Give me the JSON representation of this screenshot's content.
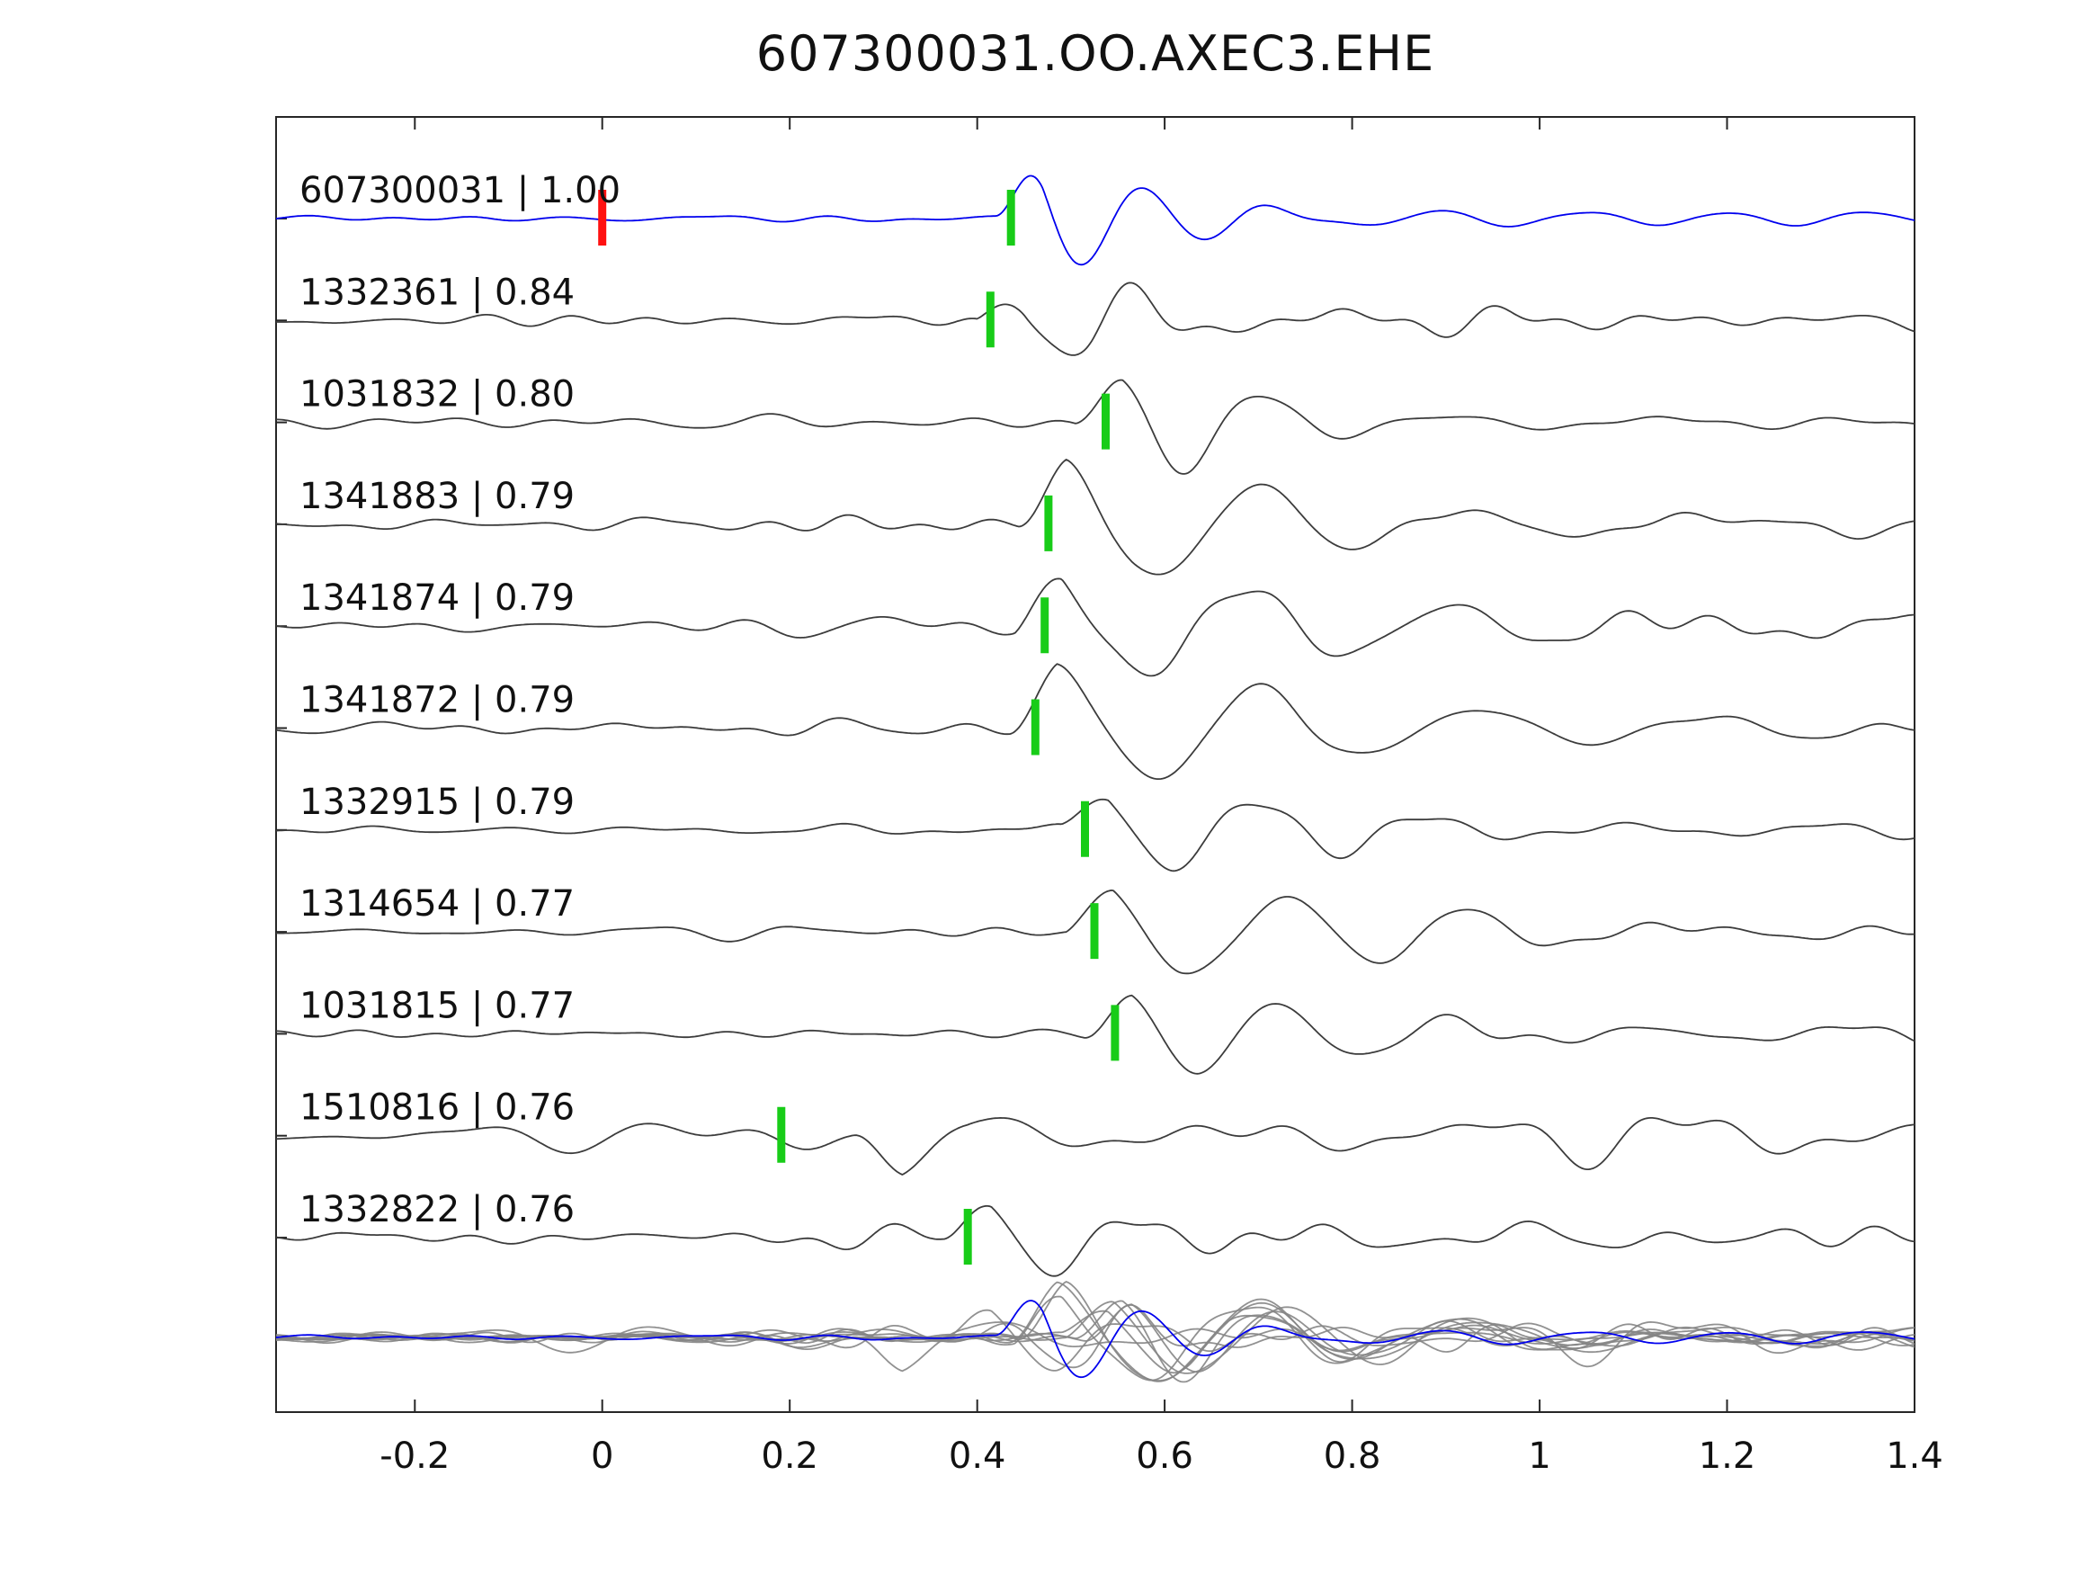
{
  "title": "607300031.OO.AXEC3.EHE",
  "chart_data": {
    "type": "line",
    "title": "607300031.OO.AXEC3.EHE",
    "xlabel": "",
    "ylabel": "",
    "xlim": [
      -0.348,
      1.4
    ],
    "grid": false,
    "legend": "none",
    "x_ticks": [
      -0.2,
      0,
      0.2,
      0.4,
      0.6,
      0.8,
      1,
      1.2,
      1.4
    ],
    "x_tick_labels": [
      "-0.2",
      "0",
      "0.2",
      "0.4",
      "0.6",
      "0.8",
      "1",
      "1.2",
      "1.4"
    ],
    "colors": {
      "template": "#0000ee",
      "trace": "#3c3c3c",
      "overlay": "#858585",
      "pick": "#18cc18",
      "ref_pick": "#ff1111",
      "axis": "#262626",
      "text": "#111111"
    },
    "traces": [
      {
        "id": "607300031",
        "correlation": "1.00",
        "label": "607300031 | 1.00",
        "is_template": true,
        "picks": [
          {
            "x": 0.0,
            "color": "ref_pick"
          },
          {
            "x": 0.436,
            "color": "pick"
          }
        ],
        "synth": {
          "onset": 0.42,
          "f": 8.0,
          "amp": 1.4,
          "decay": 0.13,
          "tail_amp": 0.26,
          "tail_f": 6.5,
          "tail_decay": 0.95,
          "noise": 0.07,
          "phase": 0.0,
          "seed": 101
        }
      },
      {
        "id": "1332361",
        "correlation": "0.84",
        "label": "1332361 | 0.84",
        "is_template": false,
        "picks": [
          {
            "x": 0.414,
            "color": "pick"
          }
        ],
        "synth": {
          "onset": 0.4,
          "f": 7.2,
          "amp": 0.95,
          "decay": 0.17,
          "tail_amp": 0.3,
          "tail_f": 5.5,
          "tail_decay": 0.85,
          "noise": 0.17,
          "phase": 0.6,
          "seed": 102
        }
      },
      {
        "id": "1031832",
        "correlation": "0.80",
        "label": "1031832 | 0.80",
        "is_template": false,
        "picks": [
          {
            "x": 0.537,
            "color": "pick"
          }
        ],
        "synth": {
          "onset": 0.505,
          "f": 6.2,
          "amp": 1.0,
          "decay": 0.19,
          "tail_amp": 0.28,
          "tail_f": 5.0,
          "tail_decay": 0.9,
          "noise": 0.14,
          "phase": 0.3,
          "seed": 103
        }
      },
      {
        "id": "1341883",
        "correlation": "0.79",
        "label": "1341883 | 0.79",
        "is_template": false,
        "picks": [
          {
            "x": 0.476,
            "color": "pick"
          }
        ],
        "synth": {
          "onset": 0.445,
          "f": 4.8,
          "amp": 1.2,
          "decay": 0.3,
          "tail_amp": 0.3,
          "tail_f": 4.0,
          "tail_decay": 1.0,
          "noise": 0.16,
          "phase": 0.2,
          "seed": 104
        }
      },
      {
        "id": "1341874",
        "correlation": "0.79",
        "label": "1341874 | 0.79",
        "is_template": false,
        "picks": [
          {
            "x": 0.472,
            "color": "pick"
          }
        ],
        "synth": {
          "onset": 0.44,
          "f": 4.8,
          "amp": 1.1,
          "decay": 0.3,
          "tail_amp": 0.3,
          "tail_f": 4.2,
          "tail_decay": 1.0,
          "noise": 0.17,
          "phase": 0.5,
          "seed": 105
        }
      },
      {
        "id": "1341872",
        "correlation": "0.79",
        "label": "1341872 | 0.79",
        "is_template": false,
        "picks": [
          {
            "x": 0.462,
            "color": "pick"
          }
        ],
        "synth": {
          "onset": 0.435,
          "f": 4.6,
          "amp": 1.2,
          "decay": 0.3,
          "tail_amp": 0.3,
          "tail_f": 4.0,
          "tail_decay": 1.0,
          "noise": 0.16,
          "phase": 0.0,
          "seed": 106
        }
      },
      {
        "id": "1332915",
        "correlation": "0.79",
        "label": "1332915 | 0.79",
        "is_template": false,
        "picks": [
          {
            "x": 0.515,
            "color": "pick"
          }
        ],
        "synth": {
          "onset": 0.49,
          "f": 6.0,
          "amp": 1.0,
          "decay": 0.18,
          "tail_amp": 0.3,
          "tail_f": 5.0,
          "tail_decay": 0.9,
          "noise": 0.11,
          "phase": 0.2,
          "seed": 107
        }
      },
      {
        "id": "1314654",
        "correlation": "0.77",
        "label": "1314654 | 0.77",
        "is_template": false,
        "picks": [
          {
            "x": 0.525,
            "color": "pick"
          }
        ],
        "synth": {
          "onset": 0.495,
          "f": 5.2,
          "amp": 1.05,
          "decay": 0.26,
          "tail_amp": 0.3,
          "tail_f": 4.5,
          "tail_decay": 1.0,
          "noise": 0.14,
          "phase": 0.4,
          "seed": 108
        }
      },
      {
        "id": "1031815",
        "correlation": "0.77",
        "label": "1031815 | 0.77",
        "is_template": false,
        "picks": [
          {
            "x": 0.547,
            "color": "pick"
          }
        ],
        "synth": {
          "onset": 0.515,
          "f": 6.0,
          "amp": 1.0,
          "decay": 0.2,
          "tail_amp": 0.28,
          "tail_f": 5.0,
          "tail_decay": 0.9,
          "noise": 0.13,
          "phase": 0.1,
          "seed": 109
        }
      },
      {
        "id": "1510816",
        "correlation": "0.76",
        "label": "1510816 | 0.76",
        "is_template": false,
        "picks": [
          {
            "x": 0.191,
            "color": "pick"
          }
        ],
        "synth": {
          "onset": 0.27,
          "f": 4.5,
          "amp": 1.05,
          "decay": 0.22,
          "tail_amp": 0.3,
          "tail_f": 4.5,
          "tail_decay": 0.8,
          "noise": 0.32,
          "phase": 3.4,
          "seed": 110
        }
      },
      {
        "id": "1332822",
        "correlation": "0.76",
        "label": "1332822 | 0.76",
        "is_template": false,
        "picks": [
          {
            "x": 0.39,
            "color": "pick"
          }
        ],
        "synth": {
          "onset": 0.365,
          "f": 6.5,
          "amp": 0.85,
          "decay": 0.16,
          "tail_amp": 0.3,
          "tail_f": 5.0,
          "tail_decay": 0.9,
          "noise": 0.18,
          "phase": 0.0,
          "seed": 111
        }
      }
    ],
    "overlay_row": {
      "description": "all detection traces superimposed in gray with blue template on top",
      "includes_template": true
    }
  }
}
